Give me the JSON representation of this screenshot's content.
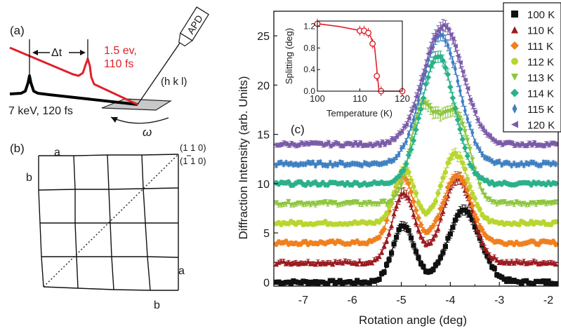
{
  "panel_a": {
    "label": "(a)",
    "detector_label": "APD",
    "delay_label": "Δt",
    "pump_label_1": "1.5 ev,",
    "pump_label_2": "110 fs",
    "probe_label": "7 keV, 120 fs",
    "reflection_label": "(h k l)",
    "rotation_symbol": "ω",
    "colors": {
      "pump": "#e0202a",
      "probe": "#000000"
    }
  },
  "panel_b": {
    "label": "(b)",
    "axis_a_top": "a",
    "axis_b_left": "b",
    "axis_a_right": "a",
    "axis_b_bottom": "b",
    "direction_1": "(1 1 0)",
    "direction_2": "(1 1 0)",
    "direction_2_overbar": "1"
  },
  "panel_c": {
    "label": "(c)",
    "chart_data": {
      "type": "line",
      "xlabel": "Rotation angle (deg)",
      "ylabel": "Diffraction Intensity (arb. Units)",
      "xlim": [
        -7.6,
        -1.8
      ],
      "ylim": [
        -0.4,
        27.5
      ],
      "xticks": [
        -7,
        -6,
        -5,
        -4,
        -3,
        -2
      ],
      "yticks": [
        0,
        5,
        10,
        15,
        20,
        25
      ],
      "legend_position": "top-right",
      "series": [
        {
          "name": "100 K",
          "color": "#111111",
          "marker": "square",
          "offset": 0,
          "peaks": [
            [
              -4.95,
              5.8,
              0.22
            ],
            [
              -3.72,
              7.2,
              0.33
            ]
          ]
        },
        {
          "name": "110 K",
          "color": "#9b1b20",
          "marker": "triangle-up",
          "offset": 2,
          "peaks": [
            [
              -4.95,
              7.0,
              0.23
            ],
            [
              -3.85,
              8.5,
              0.3
            ]
          ]
        },
        {
          "name": "111 K",
          "color": "#f0801e",
          "marker": "diamond",
          "offset": 4,
          "peaks": [
            [
              -4.97,
              6.8,
              0.22
            ],
            [
              -3.86,
              6.9,
              0.28
            ]
          ]
        },
        {
          "name": "112 K",
          "color": "#b8d630",
          "marker": "circle",
          "offset": 6,
          "peaks": [
            [
              -4.93,
              5.5,
              0.2
            ],
            [
              -3.9,
              7.0,
              0.27
            ]
          ]
        },
        {
          "name": "113 K",
          "color": "#8ec63f",
          "marker": "triangle-down",
          "offset": 8,
          "peaks": [
            [
              -4.65,
              5.5,
              0.2
            ],
            [
              -3.78,
              5.5,
              0.24
            ],
            [
              -4.25,
              7.5,
              0.35
            ]
          ]
        },
        {
          "name": "114 K",
          "color": "#2bb18a",
          "marker": "diamond",
          "offset": 10,
          "peaks": [
            [
              -4.25,
              13.0,
              0.34
            ]
          ]
        },
        {
          "name": "115 K",
          "color": "#3e7fc1",
          "marker": "thin-diamond",
          "offset": 12,
          "peaks": [
            [
              -4.2,
              13.0,
              0.38
            ]
          ]
        },
        {
          "name": "120 K",
          "color": "#7a5ba8",
          "marker": "triangle-left",
          "offset": 14,
          "peaks": [
            [
              -4.15,
              12.0,
              0.4
            ]
          ]
        }
      ]
    },
    "inset": {
      "xlabel": "Temperature (K)",
      "ylabel": "Splitting (deg)",
      "xlim": [
        100,
        120
      ],
      "ylim": [
        0,
        1.3
      ],
      "xticks": [
        100,
        110,
        120
      ],
      "yticks": [
        "0.0",
        "0.4",
        "0.8",
        "1.2"
      ],
      "color": "#e0202a",
      "points": [
        [
          100,
          1.25
        ],
        [
          110,
          1.12
        ],
        [
          111,
          1.12
        ],
        [
          112,
          1.08
        ],
        [
          113,
          0.88
        ],
        [
          114,
          0.28
        ],
        [
          115,
          0.0
        ],
        [
          120,
          0.0
        ]
      ],
      "curve": [
        [
          100,
          1.25
        ],
        [
          105,
          1.2
        ],
        [
          109,
          1.14
        ],
        [
          111,
          1.1
        ],
        [
          112.5,
          1.02
        ],
        [
          113.5,
          0.8
        ],
        [
          114.2,
          0.25
        ],
        [
          114.5,
          0.0
        ],
        [
          120,
          0.0
        ]
      ]
    }
  }
}
